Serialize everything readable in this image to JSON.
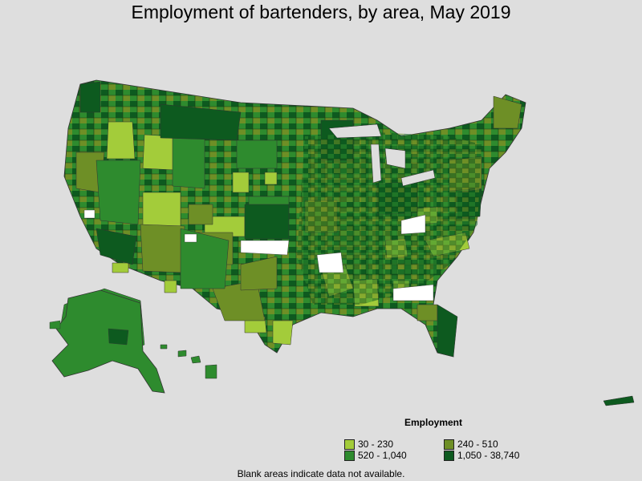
{
  "title": "Employment of bartenders, by area, May 2019",
  "legend": {
    "title": "Employment",
    "items": [
      {
        "label": "30 - 230",
        "color": "#a3cc3a"
      },
      {
        "label": "240 - 510",
        "color": "#6e8f26"
      },
      {
        "label": "520 - 1,040",
        "color": "#2e8b2e"
      },
      {
        "label": "1,050 - 38,740",
        "color": "#0d5a1f"
      }
    ]
  },
  "footnote": "Blank areas indicate data not available.",
  "colors": {
    "background": "#dedede",
    "blank": "#ffffff",
    "border": "#333333"
  }
}
